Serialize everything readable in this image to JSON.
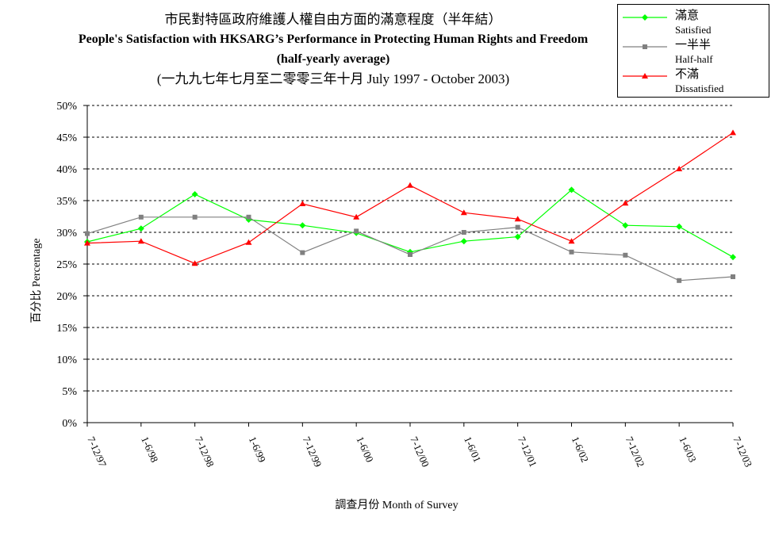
{
  "chart_data": {
    "type": "line",
    "title_zh": "市民對特區政府維護人權自由方面的滿意程度（半年結）",
    "title": "People's Satisfaction with HKSARG’s Performance in Protecting Human Rights and Freedom",
    "subtitle": "(half-yearly average)",
    "period": "(一九九七年七月至二零零三年十月 July 1997 - October 2003)",
    "xlabel": "調查月份 Month of Survey",
    "ylabel": "百分比 Percentage",
    "ylim": [
      0,
      50
    ],
    "yticks": [
      "0%",
      "5%",
      "10%",
      "15%",
      "20%",
      "25%",
      "30%",
      "35%",
      "40%",
      "45%",
      "50%"
    ],
    "grid": true,
    "legend_position": "top-right",
    "categories": [
      "7-12/97",
      "1-6/98",
      "7-12/98",
      "1-6/99",
      "7-12/99",
      "1-6/00",
      "7-12/00",
      "1-6/01",
      "7-12/01",
      "1-6/02",
      "7-12/02",
      "1-6/03",
      "7-12/03"
    ],
    "series": [
      {
        "name": "滿意",
        "name_en": "Satisfied",
        "color": "#00ff00",
        "marker": "diamond",
        "values": [
          28.5,
          30.6,
          36.0,
          32.0,
          31.1,
          29.9,
          26.9,
          28.6,
          29.3,
          36.7,
          31.1,
          30.9,
          26.1
        ]
      },
      {
        "name": "一半半",
        "name_en": "Half-half",
        "color": "#808080",
        "marker": "square",
        "values": [
          29.8,
          32.4,
          32.4,
          32.4,
          26.8,
          30.2,
          26.5,
          30.0,
          30.8,
          26.9,
          26.4,
          22.4,
          23.0
        ]
      },
      {
        "name": "不滿",
        "name_en": "Dissatisfied",
        "color": "#ff0000",
        "marker": "triangle",
        "values": [
          28.3,
          28.6,
          25.1,
          28.4,
          34.5,
          32.4,
          37.4,
          33.1,
          32.1,
          28.6,
          34.6,
          40.0,
          45.7
        ]
      }
    ]
  }
}
